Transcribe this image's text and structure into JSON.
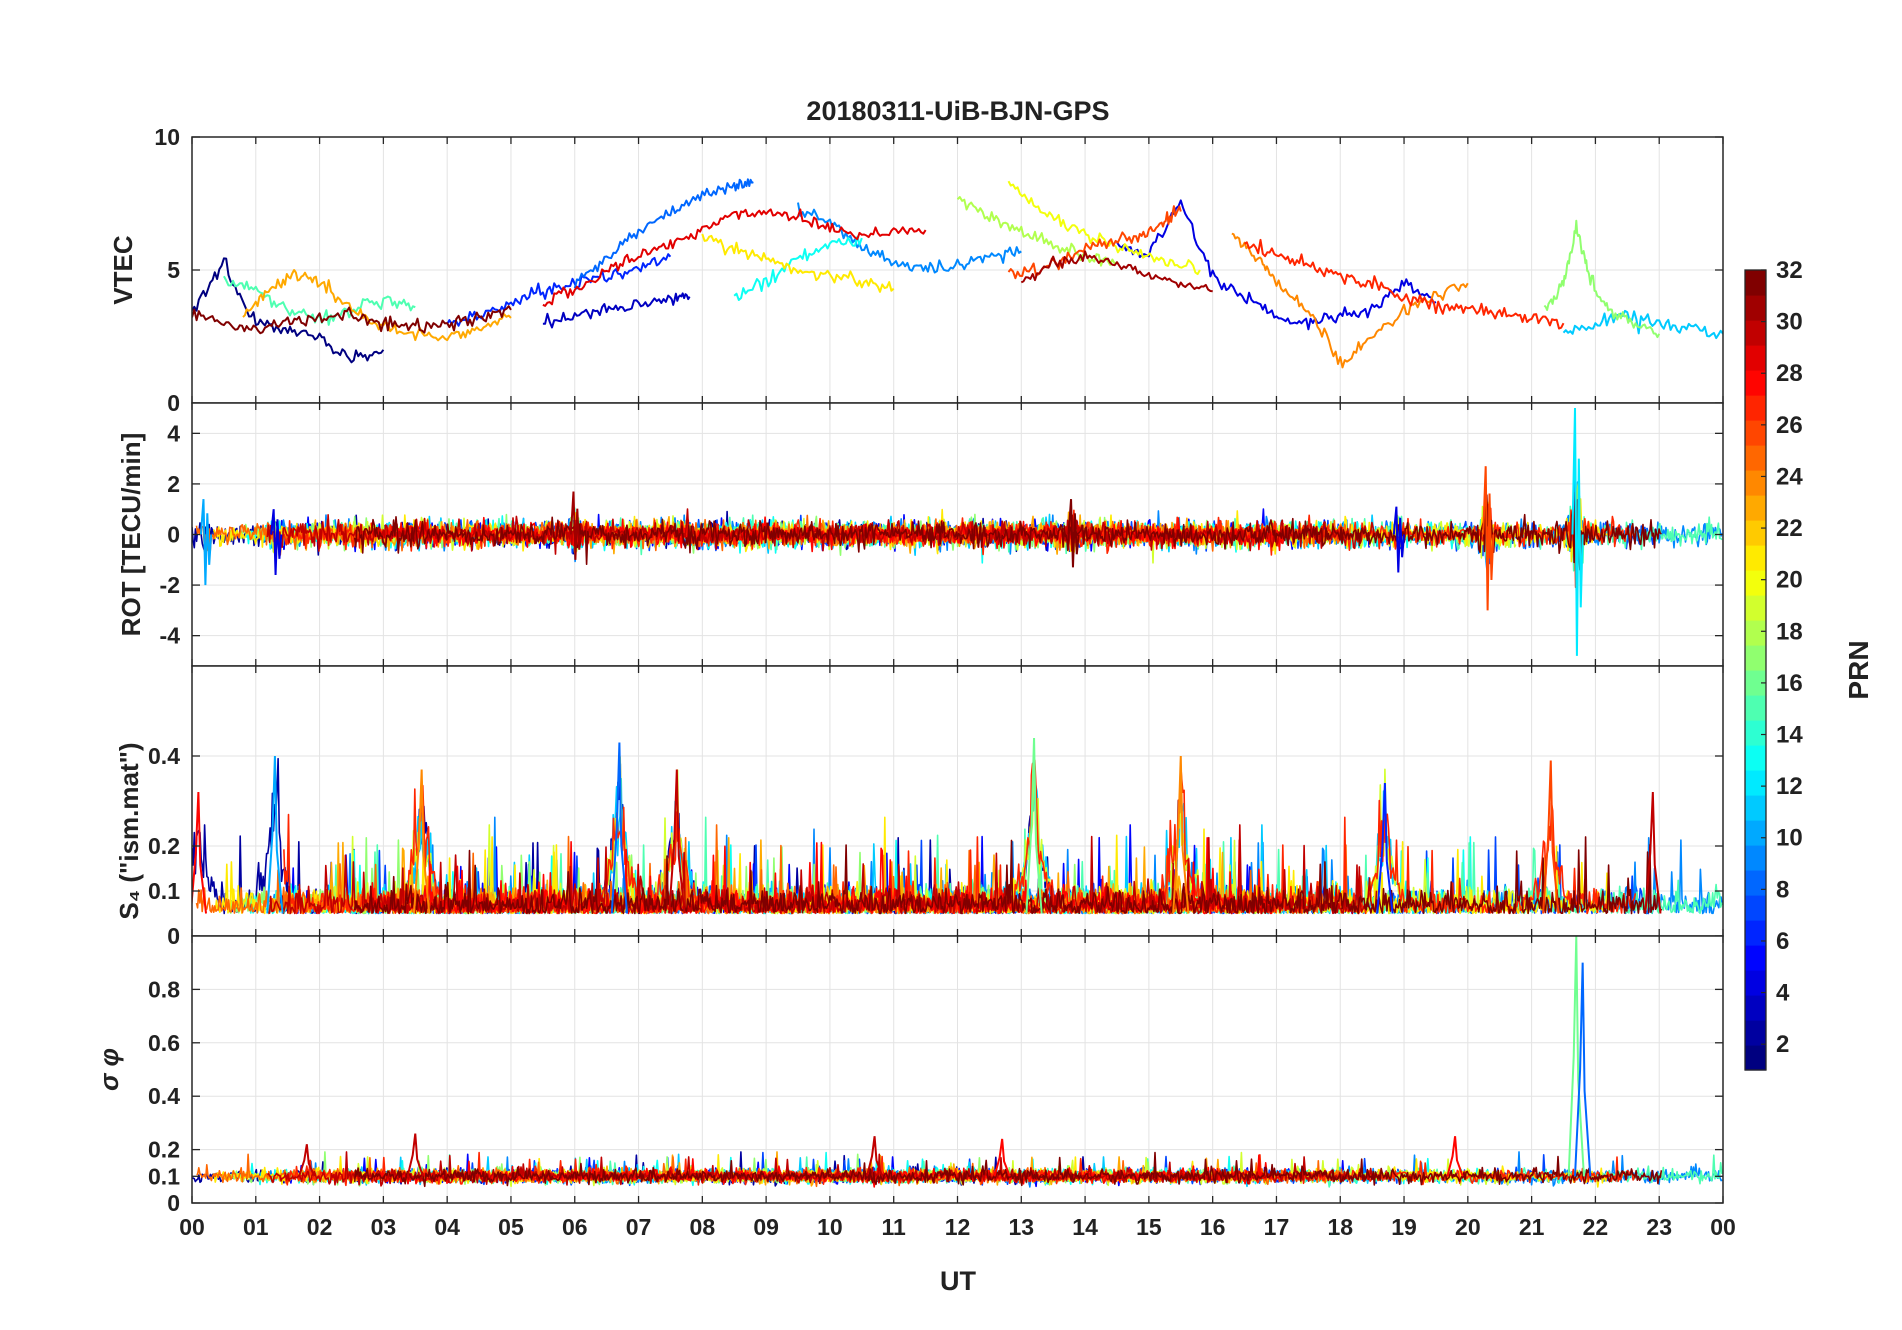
{
  "figure": {
    "title": "20180311-UiB-BJN-GPS",
    "xlabel": "UT",
    "x_tick_labels": [
      "00",
      "01",
      "02",
      "03",
      "04",
      "05",
      "06",
      "07",
      "08",
      "09",
      "10",
      "11",
      "12",
      "13",
      "14",
      "15",
      "16",
      "17",
      "18",
      "19",
      "20",
      "21",
      "22",
      "23",
      "00"
    ]
  },
  "colorbar": {
    "label": "PRN",
    "range": [
      1,
      32
    ],
    "colormap": "jet",
    "tick_labels": [
      "2",
      "4",
      "6",
      "8",
      "10",
      "12",
      "14",
      "16",
      "18",
      "20",
      "22",
      "24",
      "26",
      "28",
      "30",
      "32"
    ]
  },
  "chart_data": [
    {
      "type": "line",
      "panel": "VTEC",
      "ylabel": "VTEC",
      "xlim": [
        0,
        24
      ],
      "ylim": [
        0,
        10
      ],
      "y_tick_labels": [
        "0",
        "5",
        "10"
      ],
      "grid": true,
      "legend": "none",
      "series": [
        {
          "prn": 1,
          "x": [
            0.0,
            0.5,
            1.0,
            1.5,
            2.0,
            2.5,
            3.0
          ],
          "y": [
            3.5,
            5.3,
            3.0,
            2.8,
            2.5,
            1.6,
            2.0
          ]
        },
        {
          "prn": 3,
          "x": [
            5.5,
            6.0,
            6.5,
            7.0,
            7.5,
            7.8
          ],
          "y": [
            3.0,
            3.3,
            3.5,
            3.7,
            3.9,
            4.0
          ]
        },
        {
          "prn": 4,
          "x": [
            14.5,
            15.0,
            15.5,
            16.0,
            16.5,
            17.0,
            17.5,
            18.0,
            18.5,
            19.0,
            19.5
          ],
          "y": [
            6.0,
            5.5,
            7.5,
            4.8,
            4.0,
            3.2,
            3.0,
            3.3,
            3.5,
            4.5,
            3.8
          ]
        },
        {
          "prn": 6,
          "x": [
            4.0,
            4.5,
            5.0,
            5.5,
            6.0,
            6.5,
            7.0,
            7.5
          ],
          "y": [
            3.0,
            3.2,
            3.8,
            4.2,
            4.5,
            4.8,
            5.0,
            5.5
          ]
        },
        {
          "prn": 8,
          "x": [
            6.0,
            6.5,
            7.0,
            7.5,
            8.0,
            8.5,
            8.8
          ],
          "y": [
            4.5,
            5.5,
            6.5,
            7.2,
            7.8,
            8.2,
            8.3
          ]
        },
        {
          "prn": 9,
          "x": [
            9.5,
            10.0,
            10.5,
            11.0,
            11.5,
            12.0,
            12.5,
            13.0
          ],
          "y": [
            7.3,
            6.8,
            5.8,
            5.3,
            5.0,
            5.1,
            5.5,
            5.7
          ]
        },
        {
          "prn": 11,
          "x": [
            21.5,
            22.0,
            22.5,
            23.0,
            23.5,
            24.0
          ],
          "y": [
            2.6,
            3.0,
            3.3,
            3.0,
            2.8,
            2.6
          ]
        },
        {
          "prn": 13,
          "x": [
            8.5,
            9.0,
            9.5,
            10.0,
            10.5
          ],
          "y": [
            4.0,
            4.5,
            5.5,
            6.0,
            6.2
          ]
        },
        {
          "prn": 15,
          "x": [
            0.5,
            1.0,
            1.5,
            2.0,
            2.5,
            3.0,
            3.5
          ],
          "y": [
            4.6,
            4.2,
            3.5,
            3.2,
            3.5,
            3.8,
            3.6
          ]
        },
        {
          "prn": 17,
          "x": [
            21.2,
            21.5,
            21.7,
            21.9,
            22.2,
            22.6,
            23.0
          ],
          "y": [
            3.5,
            4.5,
            6.6,
            4.8,
            3.5,
            3.0,
            2.6
          ]
        },
        {
          "prn": 18,
          "x": [
            12.0,
            12.5,
            13.0,
            13.5,
            14.0,
            14.5
          ],
          "y": [
            7.8,
            7.0,
            6.4,
            6.0,
            5.5,
            5.3
          ]
        },
        {
          "prn": 20,
          "x": [
            12.8,
            13.3,
            13.8,
            14.3,
            14.8,
            15.3,
            15.8
          ],
          "y": [
            8.4,
            7.2,
            6.6,
            6.0,
            5.6,
            5.2,
            5.0
          ]
        },
        {
          "prn": 21,
          "x": [
            8.0,
            8.5,
            9.0,
            9.5,
            10.0,
            10.5,
            11.0
          ],
          "y": [
            6.3,
            5.8,
            5.4,
            5.0,
            4.8,
            4.6,
            4.3
          ]
        },
        {
          "prn": 23,
          "x": [
            0.8,
            1.2,
            1.6,
            2.0,
            2.5,
            3.0,
            3.5,
            4.0,
            4.5,
            5.0
          ],
          "y": [
            3.3,
            4.2,
            4.9,
            4.5,
            3.6,
            2.8,
            2.6,
            2.5,
            2.8,
            3.2
          ]
        },
        {
          "prn": 24,
          "x": [
            16.3,
            16.7,
            17.0,
            17.5,
            18.0,
            18.5,
            19.0,
            19.5,
            20.0
          ],
          "y": [
            6.3,
            5.5,
            4.5,
            3.5,
            1.5,
            2.5,
            3.5,
            4.0,
            4.5
          ]
        },
        {
          "prn": 26,
          "x": [
            12.8,
            13.3,
            13.8,
            14.3,
            14.8,
            15.2,
            15.5
          ],
          "y": [
            4.8,
            5.0,
            5.6,
            6.0,
            6.2,
            6.8,
            7.2
          ]
        },
        {
          "prn": 27,
          "x": [
            16.5,
            17.0,
            17.5,
            18.0,
            18.5,
            19.0,
            19.5,
            20.0,
            20.5,
            21.0,
            21.5
          ],
          "y": [
            6.0,
            5.6,
            5.2,
            4.8,
            4.5,
            4.0,
            3.7,
            3.5,
            3.3,
            3.2,
            3.0
          ]
        },
        {
          "prn": 29,
          "x": [
            5.5,
            6.0,
            6.5,
            7.0,
            7.5,
            8.0,
            8.5,
            9.0,
            9.5,
            10.0,
            10.5,
            11.0,
            11.5
          ],
          "y": [
            3.8,
            4.2,
            5.0,
            5.5,
            6.0,
            6.5,
            7.1,
            7.2,
            7.0,
            6.6,
            6.3,
            6.5,
            6.5
          ]
        },
        {
          "prn": 31,
          "x": [
            13.0,
            13.5,
            14.0,
            14.5,
            15.0,
            15.5,
            16.0
          ],
          "y": [
            4.5,
            5.2,
            5.5,
            5.2,
            4.8,
            4.5,
            4.2
          ]
        },
        {
          "prn": 32,
          "x": [
            0.0,
            0.5,
            1.0,
            1.5,
            2.0,
            2.5,
            3.0,
            3.5,
            4.0,
            4.5,
            5.0
          ],
          "y": [
            3.4,
            3.0,
            2.8,
            3.0,
            3.2,
            3.3,
            3.0,
            2.8,
            3.0,
            3.2,
            3.5
          ]
        }
      ]
    },
    {
      "type": "line",
      "panel": "ROT",
      "ylabel": "ROT [TECU/min]",
      "xlim": [
        0,
        24
      ],
      "ylim": [
        -5.2,
        5.2
      ],
      "y_tick_labels": [
        "-4",
        "-2",
        "0",
        "2",
        "4"
      ],
      "grid": true,
      "legend": "none",
      "description_values": {
        "baseline": 0,
        "typical_spread": 0.3,
        "spikes": [
          {
            "x": 0.2,
            "y_max": 1.4,
            "y_min": -2.0,
            "prn": 10
          },
          {
            "x": 1.3,
            "y_max": 1.0,
            "y_min": -1.6,
            "prn": 4
          },
          {
            "x": 6.0,
            "y_max": 1.7,
            "y_min": -1.0,
            "prn": 31
          },
          {
            "x": 13.8,
            "y_max": 1.4,
            "y_min": -1.3,
            "prn": 32
          },
          {
            "x": 18.9,
            "y_max": 1.1,
            "y_min": -1.5,
            "prn": 4
          },
          {
            "x": 20.3,
            "y_max": 2.7,
            "y_min": -3.0,
            "prn": 26
          },
          {
            "x": 21.7,
            "y_max": 5.0,
            "y_min": -4.8,
            "prn": 12
          }
        ]
      }
    },
    {
      "type": "line",
      "panel": "S4",
      "ylabel": "S₄ (\"ism.mat\")",
      "xlim": [
        0,
        24
      ],
      "ylim": [
        0,
        0.6
      ],
      "y_tick_labels": [
        "0",
        "0.1",
        "0.2",
        "0.4"
      ],
      "grid": true,
      "legend": "none",
      "description_values": {
        "baseline": 0.05,
        "typical_peak": 0.15,
        "peaks": [
          {
            "x": 0.1,
            "y": 0.32,
            "prn": 28
          },
          {
            "x": 1.3,
            "y": 0.4,
            "prn": 10
          },
          {
            "x": 3.6,
            "y": 0.37,
            "prn": 24
          },
          {
            "x": 6.7,
            "y": 0.43,
            "prn": 8
          },
          {
            "x": 7.6,
            "y": 0.37,
            "prn": 30
          },
          {
            "x": 13.2,
            "y": 0.44,
            "prn": 16
          },
          {
            "x": 15.5,
            "y": 0.4,
            "prn": 24
          },
          {
            "x": 18.7,
            "y": 0.34,
            "prn": 6
          },
          {
            "x": 21.3,
            "y": 0.39,
            "prn": 26
          },
          {
            "x": 22.9,
            "y": 0.32,
            "prn": 30
          }
        ]
      }
    },
    {
      "type": "line",
      "panel": "sigma_phi",
      "ylabel": "σ φ",
      "xlim": [
        0,
        24
      ],
      "ylim": [
        0,
        1.0
      ],
      "y_tick_labels": [
        "0",
        "0.1",
        "0.2",
        "0.4",
        "0.6",
        "0.8"
      ],
      "grid": true,
      "legend": "none",
      "description_values": {
        "baseline": 0.1,
        "peaks": [
          {
            "x": 1.8,
            "y": 0.22,
            "prn": 30
          },
          {
            "x": 3.5,
            "y": 0.26,
            "prn": 30
          },
          {
            "x": 10.7,
            "y": 0.25,
            "prn": 30
          },
          {
            "x": 12.7,
            "y": 0.24,
            "prn": 28
          },
          {
            "x": 19.8,
            "y": 0.25,
            "prn": 28
          },
          {
            "x": 21.7,
            "y": 1.0,
            "prn": 16
          },
          {
            "x": 21.8,
            "y": 0.9,
            "prn": 8
          }
        ]
      }
    }
  ]
}
